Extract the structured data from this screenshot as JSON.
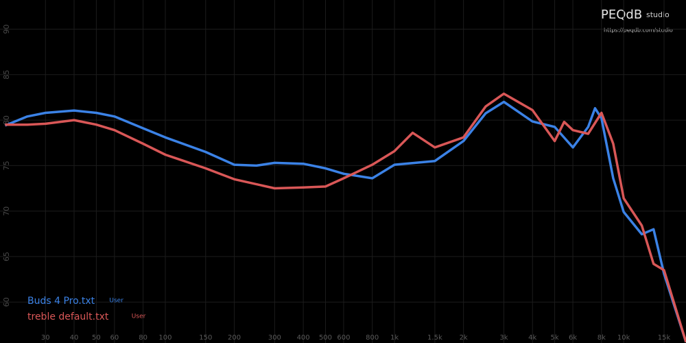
{
  "brand": {
    "name": "PEQdB",
    "suffix": "studio",
    "url": "https://peqdb.com/studio"
  },
  "chart_data": {
    "type": "line",
    "log_x": true,
    "grid": true,
    "xlim": [
      19,
      18700
    ],
    "ylim": [
      55.5,
      93.2
    ],
    "yticks": [
      60,
      65,
      70,
      75,
      80,
      85,
      90
    ],
    "xticks": [
      30,
      40,
      50,
      60,
      80,
      100,
      150,
      200,
      300,
      400,
      500,
      600,
      800,
      {
        "value": 1000,
        "label": "1k"
      },
      {
        "value": 1500,
        "label": "1.5k"
      },
      {
        "value": 2000,
        "label": "2k"
      },
      {
        "value": 3000,
        "label": "3k"
      },
      {
        "value": 4000,
        "label": "4k"
      },
      {
        "value": 5000,
        "label": "5k"
      },
      {
        "value": 6000,
        "label": "6k"
      },
      {
        "value": 8000,
        "label": "8k"
      },
      {
        "value": 10000,
        "label": "10k"
      },
      {
        "value": 15000,
        "label": "15k"
      }
    ],
    "legend_position": "bottom-left",
    "series": [
      {
        "name": "Buds 4 Pro.txt",
        "tag": "User",
        "color": "#3b82e6",
        "x": [
          20,
          25,
          30,
          40,
          50,
          60,
          80,
          100,
          150,
          200,
          250,
          300,
          400,
          500,
          600,
          800,
          1000,
          1500,
          2000,
          2500,
          3000,
          4000,
          5000,
          6000,
          7000,
          7500,
          8000,
          9000,
          10000,
          12000,
          13500,
          15000,
          18700
        ],
        "values": [
          79.4,
          80.4,
          80.8,
          81.05,
          80.8,
          80.4,
          79.1,
          78.1,
          76.5,
          75.1,
          75.0,
          75.3,
          75.2,
          74.7,
          74.1,
          73.6,
          75.1,
          75.5,
          77.7,
          80.75,
          82.0,
          79.85,
          79.25,
          77.0,
          79.25,
          81.3,
          80.2,
          73.6,
          69.9,
          67.45,
          68.0,
          63.1,
          55.6
        ]
      },
      {
        "name": "treble default.txt",
        "tag": "User",
        "color": "#d95757",
        "x": [
          20,
          25,
          30,
          40,
          50,
          60,
          80,
          100,
          150,
          200,
          300,
          400,
          500,
          600,
          800,
          1000,
          1200,
          1500,
          2000,
          2500,
          3000,
          4000,
          5000,
          5500,
          6000,
          7000,
          8000,
          9000,
          10000,
          12000,
          13500,
          15000,
          18700
        ],
        "values": [
          79.5,
          79.5,
          79.6,
          80.0,
          79.5,
          78.9,
          77.4,
          76.2,
          74.7,
          73.5,
          72.5,
          72.6,
          72.7,
          73.6,
          75.1,
          76.6,
          78.6,
          77.0,
          78.1,
          81.5,
          82.9,
          81.1,
          77.7,
          79.8,
          78.9,
          78.5,
          80.8,
          77.4,
          71.4,
          68.4,
          64.2,
          63.5,
          55.6
        ]
      }
    ]
  }
}
